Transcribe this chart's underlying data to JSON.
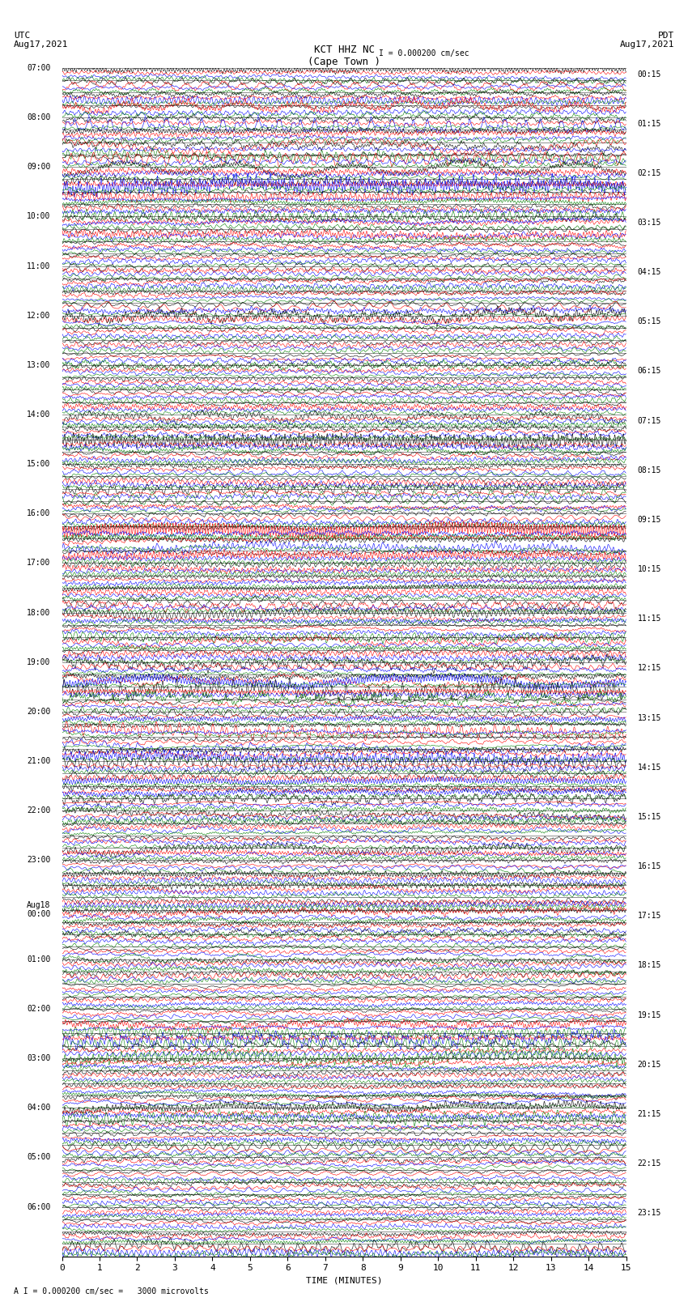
{
  "title_line1": "KCT HHZ NC",
  "title_line2": "(Cape Town )",
  "scale_label": "I = 0.000200 cm/sec",
  "bottom_label": "A I = 0.000200 cm/sec =   3000 microvolts",
  "xlabel": "TIME (MINUTES)",
  "utc_label": "UTC",
  "utc_date": "Aug17,2021",
  "pdt_label": "PDT",
  "pdt_date": "Aug17,2021",
  "total_hours": 24,
  "minutes_per_row": 15,
  "colors": [
    "black",
    "red",
    "blue",
    "green"
  ],
  "fig_width": 8.5,
  "fig_height": 16.13,
  "left_time_labels": [
    "07:00",
    "08:00",
    "09:00",
    "10:00",
    "11:00",
    "12:00",
    "13:00",
    "14:00",
    "15:00",
    "16:00",
    "17:00",
    "18:00",
    "19:00",
    "20:00",
    "21:00",
    "22:00",
    "23:00",
    "Aug18\n00:00",
    "01:00",
    "02:00",
    "03:00",
    "04:00",
    "05:00",
    "06:00"
  ],
  "right_time_labels": [
    "00:15",
    "01:15",
    "02:15",
    "03:15",
    "04:15",
    "05:15",
    "06:15",
    "07:15",
    "08:15",
    "09:15",
    "10:15",
    "11:15",
    "12:15",
    "13:15",
    "14:15",
    "15:15",
    "16:15",
    "17:15",
    "18:15",
    "19:15",
    "20:15",
    "21:15",
    "22:15",
    "23:15"
  ],
  "xticks": [
    0,
    1,
    2,
    3,
    4,
    5,
    6,
    7,
    8,
    9,
    10,
    11,
    12,
    13,
    14,
    15
  ],
  "seed": 12345
}
